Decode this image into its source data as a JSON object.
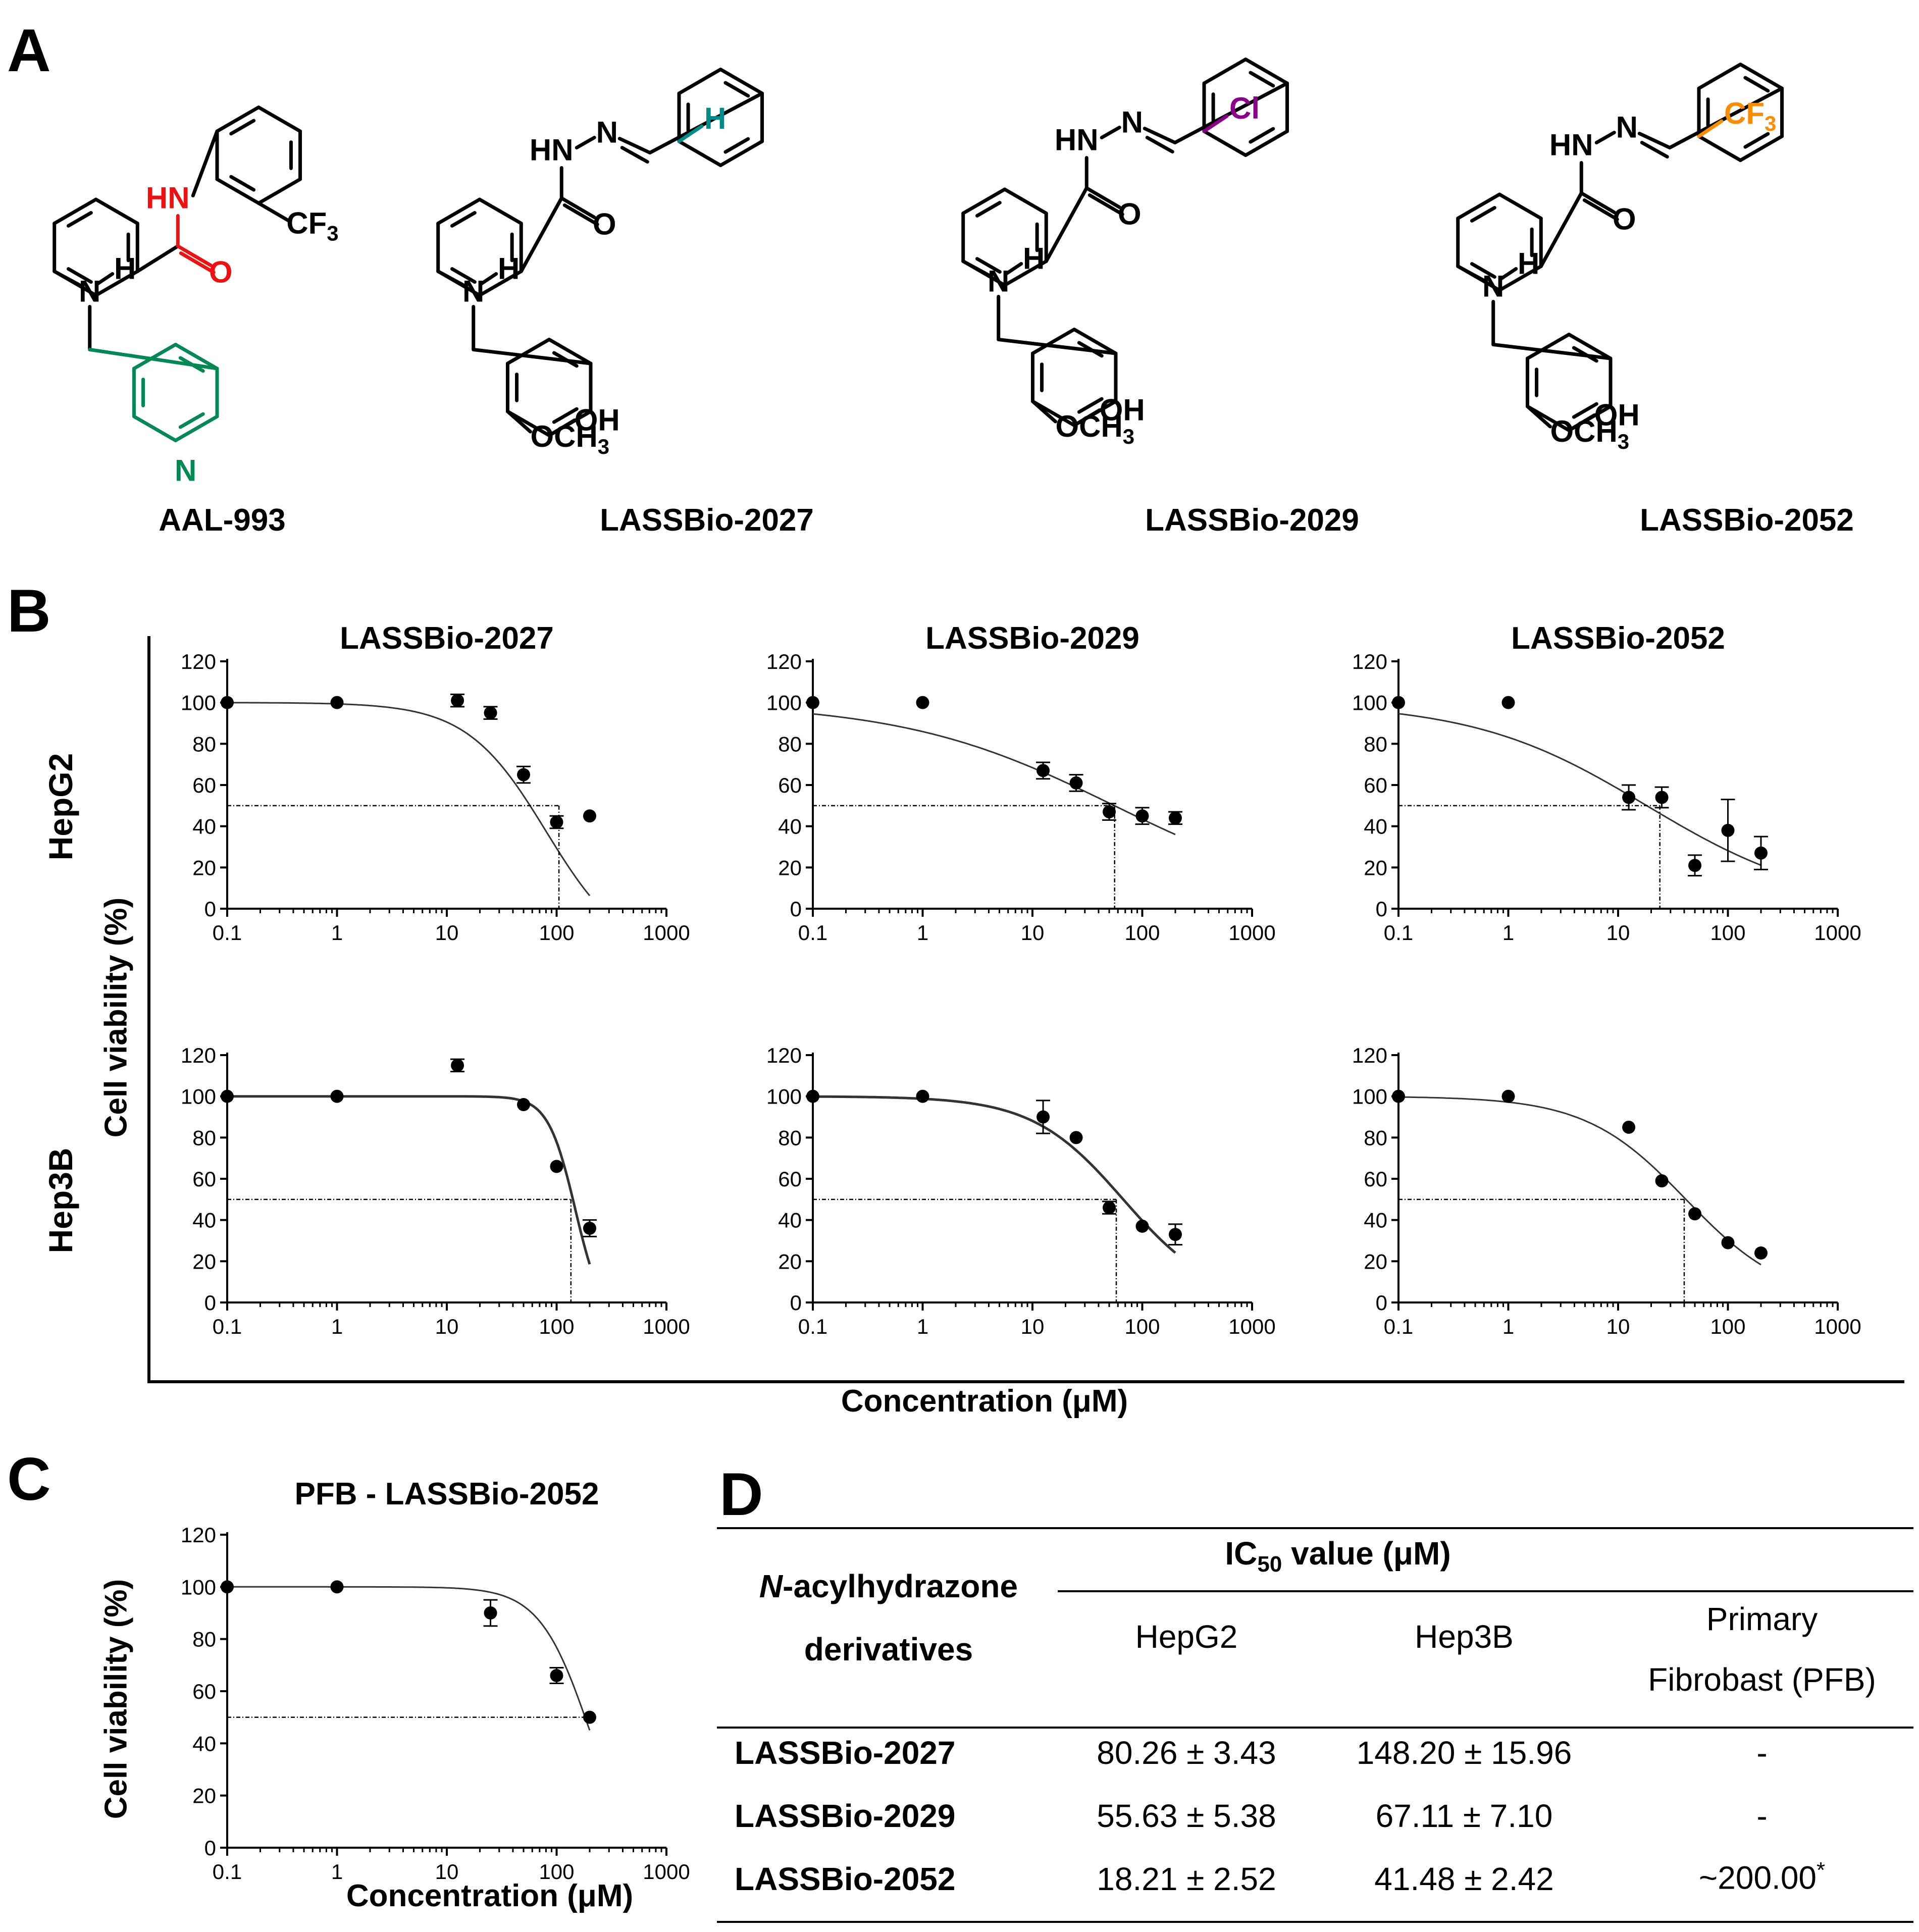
{
  "panels": {
    "A": "A",
    "B": "B",
    "C": "C",
    "D": "D"
  },
  "structures": [
    {
      "name": "AAL-993",
      "labels": {
        "nh": "HN",
        "o": "O",
        "cf3": "CF3",
        "n": "N",
        "h": "H",
        "pyr": "N"
      }
    },
    {
      "name": "LASSBio-2027",
      "substituent": "H",
      "sub_color": "#008b8b"
    },
    {
      "name": "LASSBio-2029",
      "substituent": "Cl",
      "sub_color": "#8b008b"
    },
    {
      "name": "LASSBio-2052",
      "substituent": "CF3",
      "sub_color": "#ff8c00"
    }
  ],
  "atom_labels": {
    "hn": "HN",
    "n": "N",
    "o": "O",
    "nh_n": "N",
    "nh_h": "H",
    "oh": "OH",
    "och3": "OCH3"
  },
  "aal_colors": {
    "amide": "#ee1111",
    "pyridine": "#008855"
  },
  "panelB": {
    "row_labels": [
      "HepG2",
      "Hep3B"
    ],
    "ylabel": "Cell viability (%)",
    "xlabel": "Concentration (μM)"
  },
  "panelC": {
    "title": "PFB - LASSBio-2052",
    "ylabel": "Cell viability (%)",
    "xlabel": "Concentration (μM)"
  },
  "chart_data": [
    {
      "type": "scatter",
      "title": "LASSBio-2027",
      "cell_line": "HepG2",
      "x": [
        0.1,
        1,
        12.5,
        25,
        50,
        100,
        200
      ],
      "y": [
        100,
        100,
        101,
        95,
        65,
        42,
        45
      ],
      "err": [
        0,
        0,
        3,
        3,
        4,
        3,
        0
      ],
      "fit": {
        "top": 100,
        "bottom": -25,
        "ic50": 80.26,
        "hill": 1.2
      },
      "ic50_marker": 105,
      "xlim": [
        0.1,
        1000
      ],
      "ylim": [
        0,
        120
      ],
      "x_ticks": [
        "0.1",
        "1",
        "10",
        "100",
        "1000"
      ],
      "y_ticks": [
        "0",
        "20",
        "40",
        "60",
        "80",
        "100",
        "120"
      ]
    },
    {
      "type": "scatter",
      "title": "LASSBio-2029",
      "cell_line": "HepG2",
      "x": [
        0.1,
        1,
        12.5,
        25,
        50,
        100,
        200
      ],
      "y": [
        100,
        100,
        67,
        61,
        47,
        45,
        44
      ],
      "err": [
        0,
        0,
        4,
        4,
        4,
        4,
        3
      ],
      "fit": {
        "top": 100,
        "bottom": 0,
        "ic50": 55.63,
        "hill": 0.45
      },
      "ic50_marker": 56,
      "xlim": [
        0.1,
        1000
      ],
      "ylim": [
        0,
        120
      ],
      "x_ticks": [
        "0.1",
        "1",
        "10",
        "100",
        "1000"
      ],
      "y_ticks": [
        "0",
        "20",
        "40",
        "60",
        "80",
        "100",
        "120"
      ]
    },
    {
      "type": "scatter",
      "title": "LASSBio-2052",
      "cell_line": "HepG2",
      "x": [
        0.1,
        1,
        12.5,
        25,
        50,
        100,
        200
      ],
      "y": [
        100,
        100,
        54,
        54,
        21,
        38,
        27
      ],
      "err": [
        0,
        0,
        6,
        5,
        5,
        15,
        8
      ],
      "fit": {
        "top": 100,
        "bottom": 0,
        "ic50": 18.21,
        "hill": 0.55
      },
      "ic50_marker": 24,
      "xlim": [
        0.1,
        1000
      ],
      "ylim": [
        0,
        120
      ],
      "x_ticks": [
        "0.1",
        "1",
        "10",
        "100",
        "1000"
      ],
      "y_ticks": [
        "0",
        "20",
        "40",
        "60",
        "80",
        "100",
        "120"
      ]
    },
    {
      "type": "scatter",
      "title": "",
      "cell_line": "Hep3B",
      "x": [
        0.1,
        1,
        12.5,
        50,
        100,
        200
      ],
      "y": [
        100,
        100,
        115,
        96,
        66,
        36
      ],
      "err": [
        0,
        0,
        3,
        0,
        0,
        4
      ],
      "fit": {
        "top": 100,
        "bottom": -10,
        "ic50": 148.2,
        "hill": 3.5
      },
      "ic50_marker": 135,
      "xlim": [
        0.1,
        1000
      ],
      "ylim": [
        0,
        120
      ],
      "x_ticks": [
        "0.1",
        "1",
        "10",
        "100",
        "1000"
      ],
      "y_ticks": [
        "0",
        "20",
        "40",
        "60",
        "80",
        "100",
        "120"
      ]
    },
    {
      "type": "scatter",
      "title": "",
      "cell_line": "Hep3B",
      "x": [
        0.1,
        1,
        12.5,
        25,
        50,
        100,
        200
      ],
      "y": [
        100,
        100,
        90,
        80,
        46,
        37,
        33
      ],
      "err": [
        0,
        0,
        8,
        0,
        3,
        0,
        5
      ],
      "fit": {
        "top": 100,
        "bottom": 0,
        "ic50": 67.11,
        "hill": 1.05
      },
      "ic50_marker": 58,
      "xlim": [
        0.1,
        1000
      ],
      "ylim": [
        0,
        120
      ],
      "x_ticks": [
        "0.1",
        "1",
        "10",
        "100",
        "1000"
      ],
      "y_ticks": [
        "0",
        "20",
        "40",
        "60",
        "80",
        "100",
        "120"
      ]
    },
    {
      "type": "scatter",
      "title": "",
      "cell_line": "Hep3B",
      "x": [
        0.1,
        1,
        12.5,
        25,
        50,
        100,
        200
      ],
      "y": [
        100,
        100,
        85,
        59,
        43,
        29,
        24
      ],
      "err": [
        0,
        0,
        0,
        0,
        0,
        0,
        0
      ],
      "fit": {
        "top": 100,
        "bottom": 0,
        "ic50": 41.48,
        "hill": 0.95
      },
      "ic50_marker": 40,
      "xlim": [
        0.1,
        1000
      ],
      "ylim": [
        0,
        120
      ],
      "x_ticks": [
        "0.1",
        "1",
        "10",
        "100",
        "1000"
      ],
      "y_ticks": [
        "0",
        "20",
        "40",
        "60",
        "80",
        "100",
        "120"
      ]
    },
    {
      "type": "scatter",
      "title": "PFB - LASSBio-2052",
      "cell_line": "PFB",
      "x": [
        0.1,
        1,
        25,
        100,
        200
      ],
      "y": [
        100,
        100,
        90,
        66,
        50
      ],
      "err": [
        0,
        0,
        5,
        3,
        0
      ],
      "fit": {
        "top": 100,
        "bottom": -10,
        "ic50": 200,
        "hill": 1.9
      },
      "ic50_marker": 200,
      "xlim": [
        0.1,
        1000
      ],
      "ylim": [
        0,
        120
      ],
      "x_ticks": [
        "0.1",
        "1",
        "10",
        "100",
        "1000"
      ],
      "y_ticks": [
        "0",
        "20",
        "40",
        "60",
        "80",
        "100",
        "120"
      ]
    }
  ],
  "table": {
    "col1_header_1": "N",
    "col1_header_1b": "-acylhydrazone",
    "col1_header_2": "derivatives",
    "group_header": "IC50 value (μM)",
    "group_header_main": "IC",
    "group_header_sub": "50",
    "group_header_rest": " value (μM)",
    "cols": [
      "HepG2",
      "Hep3B"
    ],
    "col_pfb_1": "Primary",
    "col_pfb_2": "Fibrobast (PFB)",
    "rows": [
      {
        "name": "LASSBio-2027",
        "hepg2": "80.26 ± 3.43",
        "hep3b": "148.20 ± 15.96",
        "pfb": "-"
      },
      {
        "name": "LASSBio-2029",
        "hepg2": "55.63 ± 5.38",
        "hep3b": "67.11 ± 7.10",
        "pfb": "-"
      },
      {
        "name": "LASSBio-2052",
        "hepg2": "18.21 ± 2.52",
        "hep3b": "41.48 ± 2.42",
        "pfb": "~200.00",
        "pfb_mark": "*"
      }
    ]
  }
}
